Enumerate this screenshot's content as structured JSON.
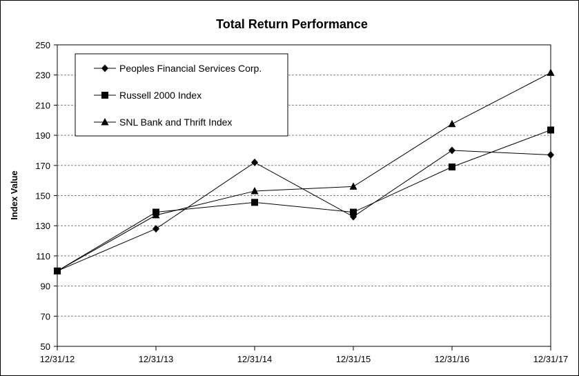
{
  "chart_data": {
    "type": "line",
    "title": "Total Return Performance",
    "xlabel": "",
    "ylabel": "Index Value",
    "categories": [
      "12/31/12",
      "12/31/13",
      "12/31/14",
      "12/31/15",
      "12/31/16",
      "12/31/17"
    ],
    "ylim": [
      50,
      250
    ],
    "yticks": [
      50,
      70,
      90,
      110,
      130,
      150,
      170,
      190,
      210,
      230,
      250
    ],
    "grid": true,
    "legend_position": "top-left",
    "series": [
      {
        "name": "Peoples Financial Services Corp.",
        "marker": "diamond",
        "values": [
          100,
          128,
          172,
          136,
          180,
          177
        ]
      },
      {
        "name": "Russell 2000 Index",
        "marker": "square",
        "values": [
          100,
          139,
          145.5,
          139,
          169,
          193.5
        ]
      },
      {
        "name": "SNL Bank and Thrift Index",
        "marker": "triangle",
        "values": [
          100,
          137,
          153,
          156,
          197.5,
          231.5
        ]
      }
    ]
  }
}
